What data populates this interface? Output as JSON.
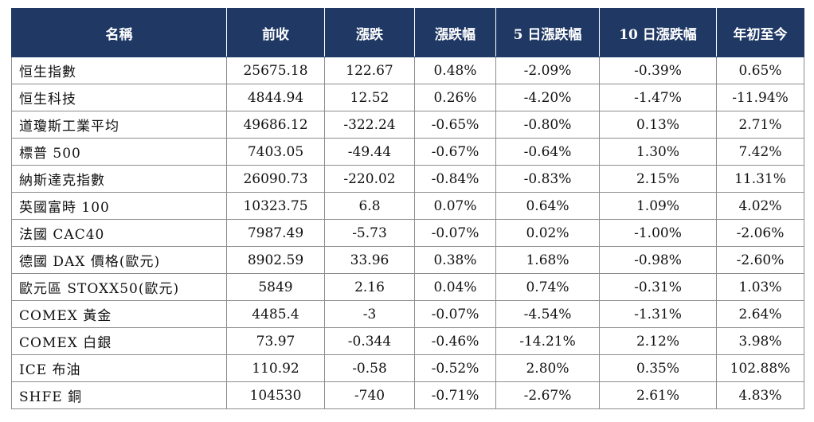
{
  "table": {
    "headers": [
      "名稱",
      "前收",
      "漲跌",
      "漲跌幅",
      "5 日漲跌幅",
      "10 日漲跌幅",
      "年初至今"
    ],
    "rows": [
      [
        "恒生指數",
        "25675.18",
        "122.67",
        "0.48%",
        "-2.09%",
        "-0.39%",
        "0.65%"
      ],
      [
        "恒生科技",
        "4844.94",
        "12.52",
        "0.26%",
        "-4.20%",
        "-1.47%",
        "-11.94%"
      ],
      [
        "道瓊斯工業平均",
        "49686.12",
        "-322.24",
        "-0.65%",
        "-0.80%",
        "0.13%",
        "2.71%"
      ],
      [
        "標普 500",
        "7403.05",
        "-49.44",
        "-0.67%",
        "-0.64%",
        "1.30%",
        "7.42%"
      ],
      [
        "納斯達克指數",
        "26090.73",
        "-220.02",
        "-0.84%",
        "-0.83%",
        "2.15%",
        "11.31%"
      ],
      [
        "英國富時 100",
        "10323.75",
        "6.8",
        "0.07%",
        "0.64%",
        "1.09%",
        "4.02%"
      ],
      [
        "法國 CAC40",
        "7987.49",
        "-5.73",
        "-0.07%",
        "0.02%",
        "-1.00%",
        "-2.06%"
      ],
      [
        "德國 DAX 價格(歐元)",
        "8902.59",
        "33.96",
        "0.38%",
        "1.68%",
        "-0.98%",
        "-2.60%"
      ],
      [
        "歐元區 STOXX50(歐元)",
        "5849",
        "2.16",
        "0.04%",
        "0.74%",
        "-0.31%",
        "1.03%"
      ],
      [
        "COMEX 黃金",
        "4485.4",
        "-3",
        "-0.07%",
        "-4.54%",
        "-1.31%",
        "2.64%"
      ],
      [
        "COMEX 白銀",
        "73.97",
        "-0.344",
        "-0.46%",
        "-14.21%",
        "2.12%",
        "3.98%"
      ],
      [
        "ICE 布油",
        "110.92",
        "-0.58",
        "-0.52%",
        "2.80%",
        "0.35%",
        "102.88%"
      ],
      [
        "SHFE 銅",
        "104530",
        "-740",
        "-0.71%",
        "-2.67%",
        "2.61%",
        "4.83%"
      ]
    ]
  },
  "colors": {
    "header_background": "#1f3864",
    "header_text": "#ffffff",
    "grid_line": "#8d8d8d"
  }
}
